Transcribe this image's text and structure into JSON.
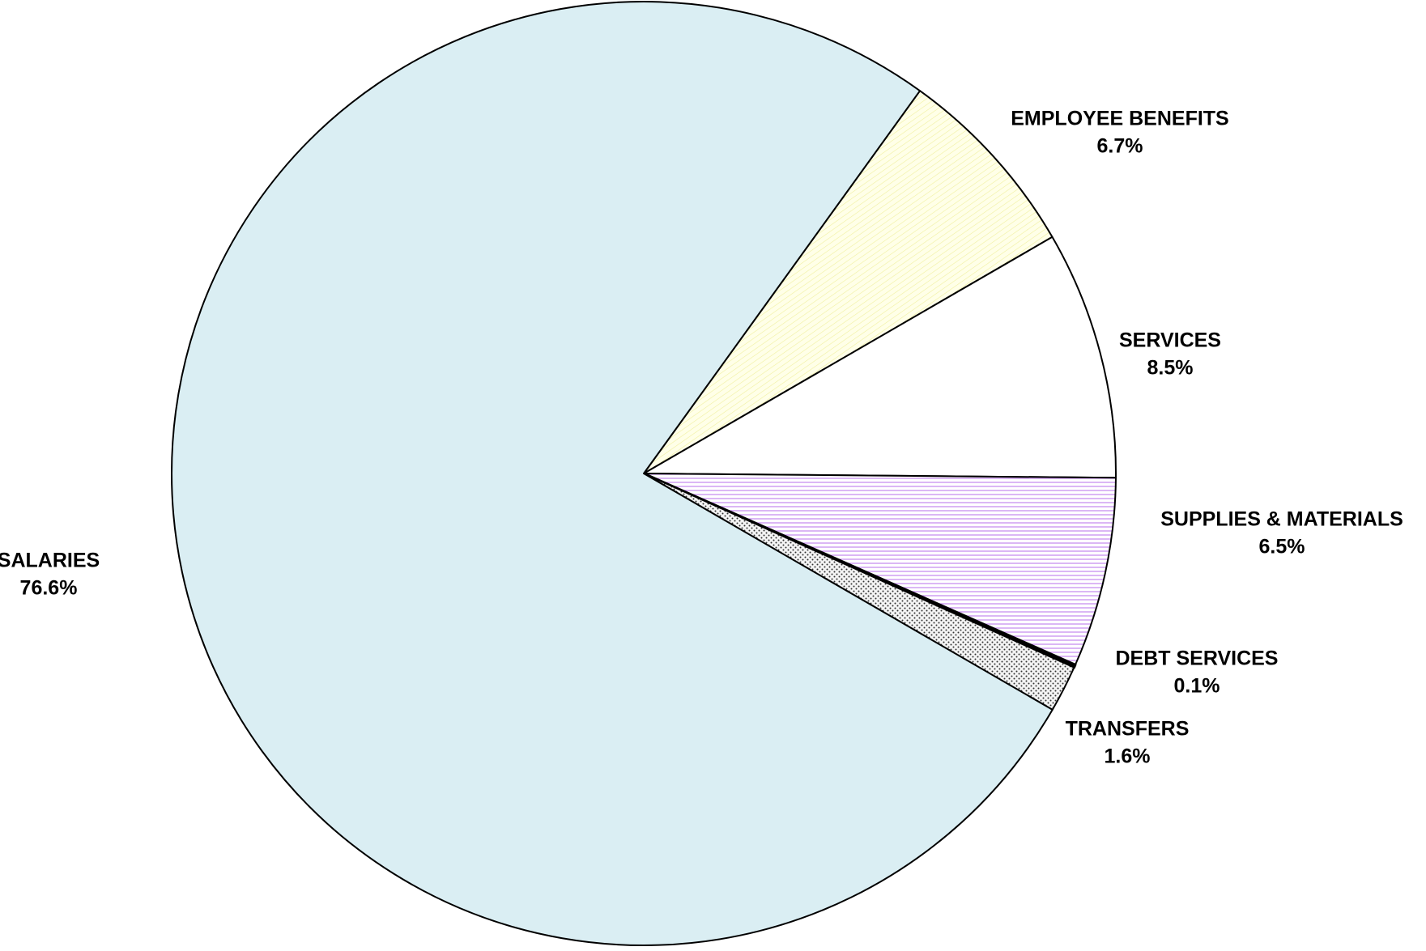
{
  "chart_data": {
    "type": "pie",
    "categories": [
      "EMPLOYEE BENEFITS",
      "SERVICES",
      "SUPPLIES & MATERIALS",
      "DEBT SERVICES",
      "TRANSFERS",
      "SALARIES"
    ],
    "values": [
      6.7,
      8.5,
      6.5,
      0.1,
      1.6,
      76.6
    ],
    "value_labels": [
      "6.7%",
      "8.5%",
      "6.5%",
      "0.1%",
      "1.6%",
      "76.6%"
    ],
    "colors": [
      "#ffffe0",
      "#ffffff",
      "#ffffff",
      "#000000",
      "#ffffff",
      "#daeef3"
    ],
    "patterns": [
      "diagonal",
      "none",
      "horizontal",
      "none",
      "dots",
      "none"
    ]
  }
}
